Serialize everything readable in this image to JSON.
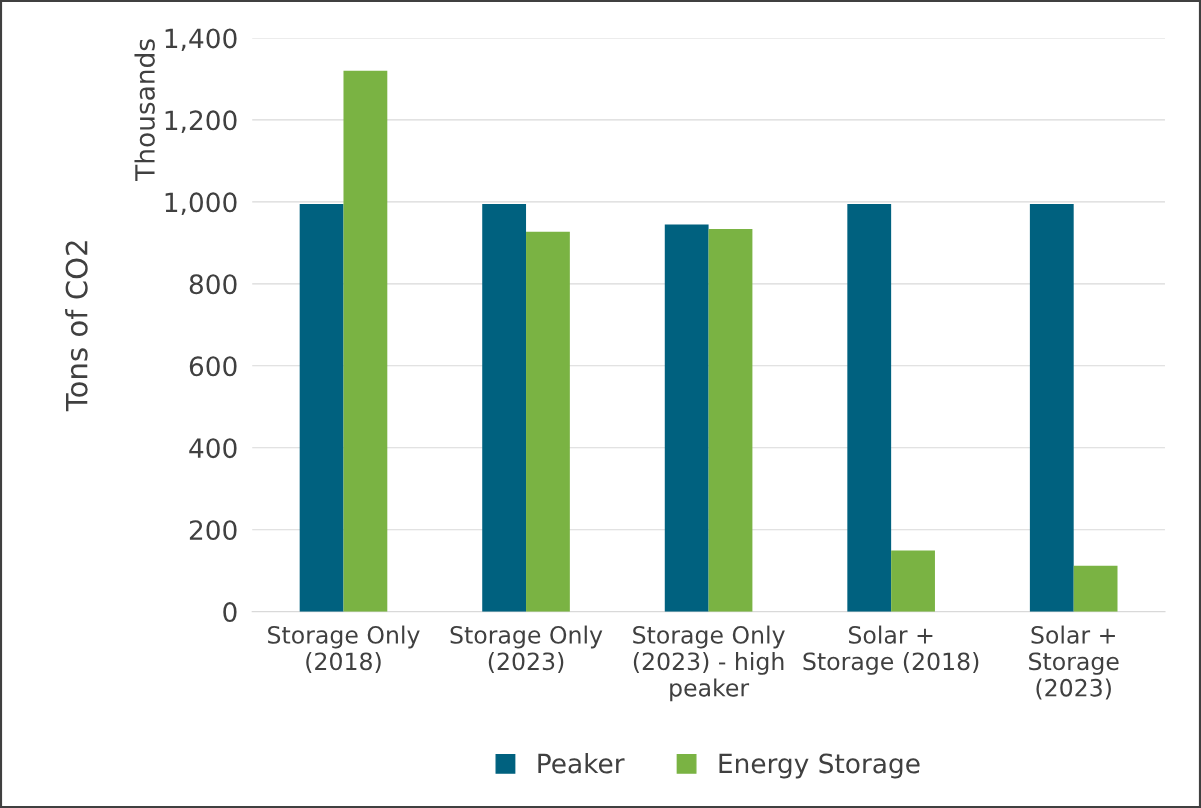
{
  "chart_data": {
    "type": "bar",
    "ylabel": "Tons of CO2",
    "annotations": [
      "Thousands"
    ],
    "categories": [
      "Storage Only\n(2018)",
      "Storage Only\n(2023)",
      "Storage Only\n(2023) - high\npeaker",
      "Solar +\nStorage (2018)",
      "Solar +\nStorage\n(2023)"
    ],
    "series": [
      {
        "name": "Peaker",
        "color": "#00617f",
        "values": [
          995,
          995,
          945,
          995,
          995
        ]
      },
      {
        "name": "Energy Storage",
        "color": "#7ab343",
        "values": [
          1320,
          927,
          934,
          149,
          112
        ]
      }
    ],
    "ylim": [
      0,
      1400
    ],
    "yticks": [
      0,
      {
        "value": 200,
        "label": "200"
      },
      {
        "value": 400,
        "label": "400"
      },
      {
        "value": 600,
        "label": "600"
      },
      {
        "value": 800,
        "label": "800"
      },
      {
        "value": 1000,
        "label": "1,000"
      },
      {
        "value": 1200,
        "label": "1,200"
      },
      {
        "value": 1400,
        "label": "1,400"
      }
    ],
    "grid": "y",
    "legend": "bottom"
  }
}
